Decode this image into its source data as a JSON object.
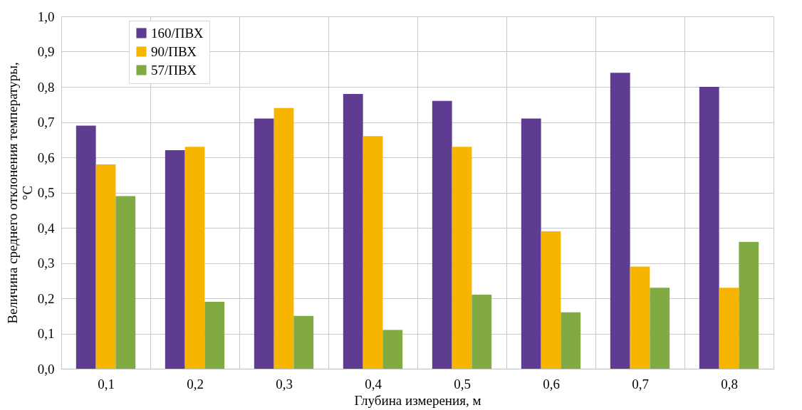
{
  "chart_data": {
    "type": "bar",
    "xlabel": "Глубина измерения, м",
    "ylabel": "Величина среднего отклонения температуры, °C",
    "categories": [
      "0,1",
      "0,2",
      "0,3",
      "0,4",
      "0,5",
      "0,6",
      "0,7",
      "0,8"
    ],
    "series": [
      {
        "name": "160/ПВХ",
        "color": "#5e3c91",
        "values": [
          0.69,
          0.62,
          0.71,
          0.78,
          0.76,
          0.71,
          0.84,
          0.8
        ]
      },
      {
        "name": "90/ПВХ",
        "color": "#f8b500",
        "values": [
          0.58,
          0.63,
          0.74,
          0.66,
          0.63,
          0.39,
          0.29,
          0.23
        ]
      },
      {
        "name": "57/ПВХ",
        "color": "#82aa43",
        "values": [
          0.49,
          0.19,
          0.15,
          0.11,
          0.21,
          0.16,
          0.23,
          0.36
        ]
      }
    ],
    "ylim": [
      0,
      1.0
    ],
    "yticks": [
      {
        "value": 0,
        "label": "0,0"
      },
      {
        "value": 0.1,
        "label": "0,1"
      },
      {
        "value": 0.2,
        "label": "0,2"
      },
      {
        "value": 0.3,
        "label": "0,3"
      },
      {
        "value": 0.4,
        "label": "0,4"
      },
      {
        "value": 0.5,
        "label": "0,5"
      },
      {
        "value": 0.6,
        "label": "0,6"
      },
      {
        "value": 0.7,
        "label": "0,7"
      },
      {
        "value": 0.8,
        "label": "0,8"
      },
      {
        "value": 0.9,
        "label": "0,9"
      },
      {
        "value": 1.0,
        "label": "1,0"
      }
    ],
    "grid": true,
    "legend": "top left"
  }
}
